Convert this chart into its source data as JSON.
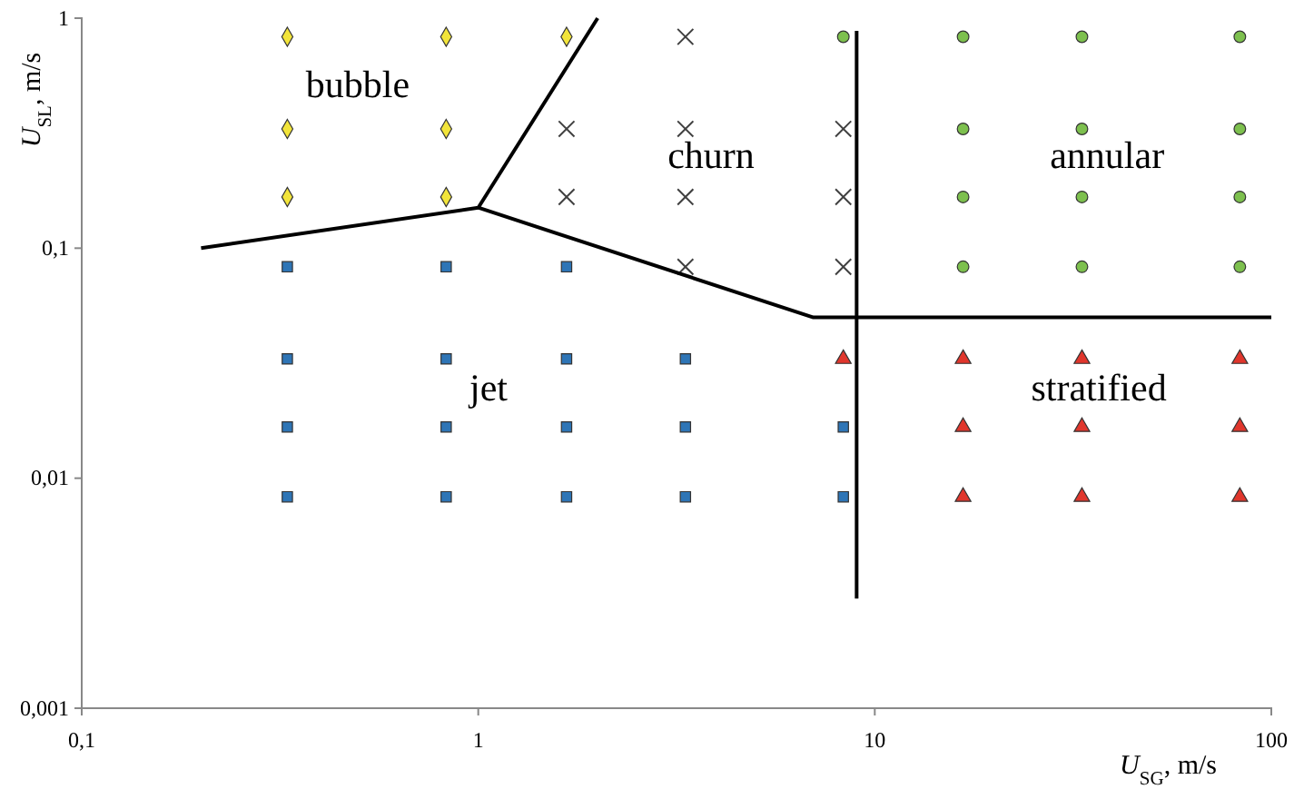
{
  "chart_data": {
    "type": "scatter",
    "xlabel": "U$_{SG}$, m/s",
    "ylabel": "U$_{SL}$, m/s",
    "log": "xy",
    "xlim": [
      0.1,
      100
    ],
    "ylim": [
      0.001,
      1
    ],
    "xticks": [
      {
        "value": 0.1,
        "label": "0,1"
      },
      1,
      10,
      100
    ],
    "yticks": [
      {
        "value": 0.001,
        "label": "0,001"
      },
      {
        "value": 0.01,
        "label": "0,01"
      },
      {
        "value": 0.1,
        "label": "0,1"
      },
      1
    ],
    "grid": false,
    "series": [
      {
        "marker": "diamond",
        "color": "#f2e43a",
        "x": [
          0.33,
          0.83,
          1.67,
          0.33,
          0.83,
          0.33,
          0.83
        ],
        "values": [
          0.83,
          0.83,
          0.83,
          0.33,
          0.33,
          0.167,
          0.167
        ]
      },
      {
        "marker": "cross",
        "color": "#404040",
        "x": [
          3.33,
          1.67,
          3.33,
          8.33,
          1.67,
          3.33,
          8.33,
          3.33,
          8.33
        ],
        "values": [
          0.83,
          0.33,
          0.33,
          0.33,
          0.167,
          0.167,
          0.167,
          0.083,
          0.083
        ]
      },
      {
        "marker": "circle",
        "color": "#7dc04e",
        "x": [
          8.33,
          16.7,
          33.3,
          83.3,
          16.7,
          33.3,
          83.3,
          16.7,
          33.3,
          83.3,
          16.7,
          33.3,
          83.3
        ],
        "values": [
          0.83,
          0.83,
          0.83,
          0.83,
          0.33,
          0.33,
          0.33,
          0.167,
          0.167,
          0.167,
          0.083,
          0.083,
          0.083
        ]
      },
      {
        "marker": "square",
        "color": "#2e75b6",
        "x": [
          0.33,
          0.83,
          1.67,
          0.33,
          0.83,
          1.67,
          3.33,
          0.33,
          0.83,
          1.67,
          3.33,
          8.33,
          0.33,
          0.83,
          1.67,
          3.33,
          8.33
        ],
        "values": [
          0.083,
          0.083,
          0.083,
          0.033,
          0.033,
          0.033,
          0.033,
          0.0167,
          0.0167,
          0.0167,
          0.0167,
          0.0167,
          0.0083,
          0.0083,
          0.0083,
          0.0083,
          0.0083
        ]
      },
      {
        "marker": "triangle",
        "color": "#e0362c",
        "x": [
          8.33,
          16.7,
          33.3,
          83.3,
          16.7,
          33.3,
          83.3,
          16.7,
          33.3,
          83.3
        ],
        "values": [
          0.033,
          0.033,
          0.033,
          0.033,
          0.0167,
          0.0167,
          0.0167,
          0.0083,
          0.0083,
          0.0083
        ]
      },
      {
        "type": "line",
        "marker": "none",
        "color": "#000000",
        "x": [
          0.2,
          1,
          2
        ],
        "values": [
          0.1,
          0.15,
          1
        ]
      },
      {
        "type": "line",
        "marker": "none",
        "color": "#000000",
        "x": [
          1,
          7,
          100
        ],
        "values": [
          0.15,
          0.05,
          0.05
        ]
      },
      {
        "type": "line",
        "marker": "none",
        "color": "#000000",
        "x": [
          9,
          9
        ],
        "values": [
          0.88,
          0.003
        ]
      }
    ],
    "annotations": [
      "bubble",
      "churn",
      "annular",
      "jet",
      "stratified"
    ]
  }
}
